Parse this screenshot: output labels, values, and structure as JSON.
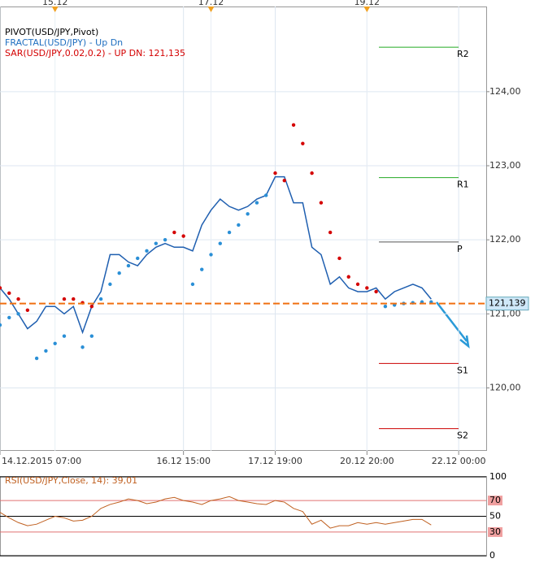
{
  "chart_data": {
    "type": "line",
    "indicators": [
      "PIVOT(USD/JPY,Pivot)",
      "FRACTAL(USD/JPY) - Up  Dn",
      "SAR(USD/JPY,0.02,0.2) -  UP  DN: 121,135"
    ],
    "x": [
      0,
      2,
      4,
      6,
      8,
      10,
      12,
      14,
      16,
      18,
      20,
      22,
      24,
      26,
      28,
      30,
      32,
      34,
      36,
      38,
      40,
      42,
      44,
      46,
      48,
      50,
      52,
      54,
      56,
      58,
      60,
      62,
      64,
      66,
      68,
      70,
      72,
      74,
      76,
      78,
      80,
      82,
      84,
      86,
      88,
      90,
      92,
      94
    ],
    "xlim": [
      0,
      106
    ],
    "xticks": [
      {
        "value": 0,
        "label": "14.12.2015 07:00"
      },
      {
        "value": 40,
        "label": "16.12 15:00"
      },
      {
        "value": 60,
        "label": "17.12 19:00"
      },
      {
        "value": 80,
        "label": "20.12 20:00"
      },
      {
        "value": 100,
        "label": "22.12 00:00"
      }
    ],
    "top_ticks": [
      {
        "value": 12,
        "label": "15.12"
      },
      {
        "value": 46,
        "label": "17.12"
      },
      {
        "value": 80,
        "label": "19.12"
      }
    ],
    "ylim": [
      119.15,
      125.15
    ],
    "yticks": [
      {
        "value": 120,
        "label": "120,00"
      },
      {
        "value": 121,
        "label": "121,00"
      },
      {
        "value": 122,
        "label": "122,00"
      },
      {
        "value": 123,
        "label": "123,00"
      },
      {
        "value": 124,
        "label": "124,00"
      }
    ],
    "series": [
      {
        "name": "Close",
        "color": "#1f5fb0",
        "values": [
          121.35,
          121.2,
          121.0,
          120.8,
          120.9,
          121.1,
          121.1,
          121.0,
          121.1,
          120.75,
          121.1,
          121.3,
          121.8,
          121.8,
          121.7,
          121.65,
          121.8,
          121.9,
          121.95,
          121.9,
          121.9,
          121.85,
          122.2,
          122.4,
          122.55,
          122.45,
          122.4,
          122.45,
          122.55,
          122.6,
          122.85,
          122.85,
          122.5,
          122.5,
          121.9,
          121.8,
          121.4,
          121.5,
          121.35,
          121.3,
          121.3,
          121.35,
          121.2,
          121.3,
          121.35,
          121.4,
          121.35,
          121.2
        ]
      },
      {
        "name": "UP",
        "color": "#2a8fd6",
        "values": [
          120.85,
          120.95,
          121.0,
          null,
          120.4,
          120.5,
          120.6,
          120.7,
          null,
          120.55,
          120.7,
          121.2,
          121.4,
          121.55,
          121.65,
          121.75,
          121.85,
          121.95,
          122.0,
          null,
          null,
          121.4,
          121.6,
          121.8,
          121.95,
          122.1,
          122.2,
          122.35,
          122.5,
          122.6,
          null,
          null,
          null,
          null,
          null,
          null,
          null,
          null,
          null,
          null,
          null,
          null,
          121.1,
          121.12,
          121.14,
          121.15,
          121.16,
          121.16
        ]
      },
      {
        "name": "DN",
        "color": "#d40000",
        "values": [
          121.35,
          121.28,
          121.2,
          121.05,
          null,
          null,
          null,
          121.2,
          121.2,
          121.15,
          121.1,
          null,
          null,
          null,
          null,
          null,
          null,
          null,
          null,
          122.1,
          122.05,
          null,
          null,
          null,
          null,
          null,
          null,
          null,
          null,
          null,
          122.9,
          122.8,
          123.55,
          123.3,
          122.9,
          122.5,
          122.1,
          121.75,
          121.5,
          121.4,
          121.35,
          121.3,
          null,
          null,
          null,
          null,
          null,
          null
        ]
      }
    ],
    "pivots": [
      {
        "name": "R2",
        "value": 124.6,
        "color": "#22aa22"
      },
      {
        "name": "R1",
        "value": 122.84,
        "color": "#22aa22"
      },
      {
        "name": "P",
        "value": 121.97,
        "color": "#555555"
      },
      {
        "name": "S1",
        "value": 120.33,
        "color": "#cc0000"
      },
      {
        "name": "S2",
        "value": 119.45,
        "color": "#cc0000"
      }
    ],
    "current_price": {
      "value": 121.139,
      "label": "121,139",
      "color": "#f07010"
    },
    "rsi": {
      "title": "RSI(USD/JPY,Close, 14): 39,01",
      "color": "#c06020",
      "values": [
        55,
        48,
        42,
        38,
        40,
        45,
        50,
        48,
        44,
        45,
        50,
        60,
        65,
        68,
        72,
        70,
        66,
        68,
        72,
        74,
        70,
        68,
        65,
        70,
        72,
        75,
        70,
        68,
        66,
        65,
        70,
        68,
        60,
        56,
        40,
        45,
        35,
        38,
        38,
        42,
        40,
        42,
        40,
        42,
        44,
        46,
        46,
        39
      ],
      "ylim": [
        0,
        100
      ],
      "yticks": [
        0,
        30,
        50,
        70,
        100
      ]
    }
  }
}
